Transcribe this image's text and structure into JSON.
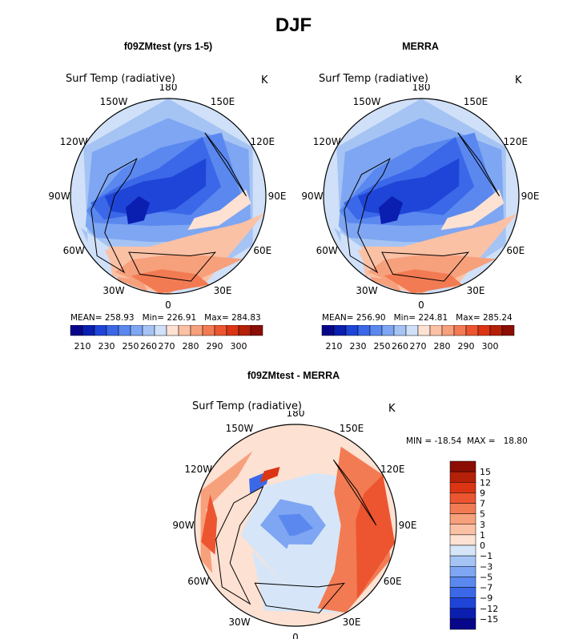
{
  "page_title": "DJF",
  "colors": {
    "scale_abs": [
      "#08078a",
      "#0a1eb0",
      "#1f45d8",
      "#3b68e8",
      "#5a88ef",
      "#7ea6f2",
      "#a5c4f4",
      "#cfe0f8",
      "#fde1d2",
      "#fbc1a5",
      "#f7a07c",
      "#f27b53",
      "#ec5530",
      "#db3514",
      "#b52008",
      "#8b0d04"
    ],
    "scale_diff": [
      "#8b0d04",
      "#b52008",
      "#db3514",
      "#ec5530",
      "#f27b53",
      "#f7a07c",
      "#fbc1a5",
      "#fde1d2",
      "#d6e6f8",
      "#a5c4f4",
      "#7ea6f2",
      "#5a88ef",
      "#3b68e8",
      "#1f45d8",
      "#0a1eb0",
      "#08078a"
    ]
  },
  "chart_data": [
    {
      "type": "heatmap",
      "projection": "north-polar-stereographic",
      "panel_title": "f09ZMtest (yrs 1-5)",
      "variable": "Surf Temp (radiative)",
      "units": "K",
      "lon_labels": [
        "180",
        "150E",
        "120E",
        "90E",
        "60E",
        "30E",
        "0",
        "30W",
        "60W",
        "90W",
        "120W",
        "150W"
      ],
      "stats": "MEAN= 258.93   Min= 226.91   Max= 284.83",
      "mean": 258.93,
      "min": 226.91,
      "max": 284.83,
      "colorbar_ticks": [
        "210",
        "230",
        "250",
        "260",
        "270",
        "280",
        "290",
        "300"
      ]
    },
    {
      "type": "heatmap",
      "projection": "north-polar-stereographic",
      "panel_title": "MERRA",
      "variable": "Surf Temp (radiative)",
      "units": "K",
      "lon_labels": [
        "180",
        "150E",
        "120E",
        "90E",
        "60E",
        "30E",
        "0",
        "30W",
        "60W",
        "90W",
        "120W",
        "150W"
      ],
      "stats": "MEAN= 256.90   Min= 224.81   Max= 285.24",
      "mean": 256.9,
      "min": 224.81,
      "max": 285.24,
      "colorbar_ticks": [
        "210",
        "230",
        "250",
        "260",
        "270",
        "280",
        "290",
        "300"
      ]
    },
    {
      "type": "heatmap",
      "projection": "north-polar-stereographic",
      "panel_title": "f09ZMtest - MERRA",
      "variable": "Surf Temp (radiative)",
      "units": "K",
      "lon_labels": [
        "180",
        "150E",
        "120E",
        "90E",
        "60E",
        "30E",
        "0",
        "30W",
        "60W",
        "90W",
        "120W",
        "150W"
      ],
      "stats": "MIN = -18.54  MAX =   18.80",
      "min": -18.54,
      "max": 18.8,
      "colorbar_ticks": [
        "15",
        "12",
        "9",
        "7",
        "5",
        "3",
        "1",
        "0",
        "−1",
        "−3",
        "−5",
        "−7",
        "−9",
        "−12",
        "−15"
      ]
    }
  ]
}
